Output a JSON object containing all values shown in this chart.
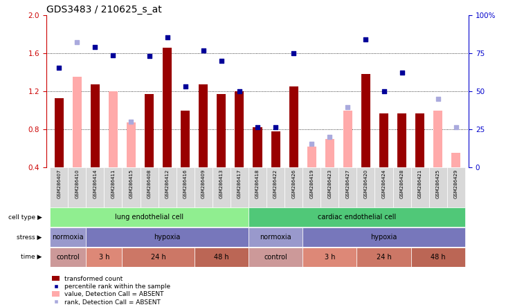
{
  "title": "GDS3483 / 210625_s_at",
  "samples": [
    "GSM286407",
    "GSM286410",
    "GSM286414",
    "GSM286411",
    "GSM286415",
    "GSM286408",
    "GSM286412",
    "GSM286416",
    "GSM286409",
    "GSM286413",
    "GSM286417",
    "GSM286418",
    "GSM286422",
    "GSM286426",
    "GSM286419",
    "GSM286423",
    "GSM286427",
    "GSM286420",
    "GSM286424",
    "GSM286428",
    "GSM286421",
    "GSM286425",
    "GSM286429"
  ],
  "red_bars": [
    1.13,
    null,
    1.27,
    null,
    null,
    1.17,
    1.66,
    1.0,
    1.27,
    1.17,
    1.2,
    0.82,
    0.78,
    1.25,
    null,
    null,
    null,
    1.38,
    0.97,
    0.97,
    0.97,
    null,
    null
  ],
  "pink_bars": [
    null,
    1.35,
    null,
    1.2,
    0.87,
    null,
    null,
    null,
    null,
    null,
    null,
    null,
    null,
    null,
    0.62,
    0.7,
    1.0,
    null,
    null,
    null,
    null,
    1.0,
    0.55
  ],
  "blue_squares": [
    1.45,
    null,
    1.67,
    1.58,
    null,
    1.57,
    1.77,
    1.25,
    1.63,
    1.52,
    1.2,
    0.82,
    0.82,
    1.6,
    null,
    null,
    null,
    1.75,
    1.2,
    1.4,
    null,
    null,
    null
  ],
  "light_blue_squares": [
    null,
    1.72,
    null,
    null,
    0.88,
    null,
    null,
    null,
    null,
    null,
    null,
    null,
    null,
    null,
    0.65,
    0.72,
    1.03,
    null,
    null,
    null,
    null,
    1.12,
    0.82
  ],
  "ylim": [
    0.4,
    2.0
  ],
  "yticks_left": [
    0.4,
    0.8,
    1.2,
    1.6,
    2.0
  ],
  "yticks_right": [
    0,
    25,
    50,
    75,
    100
  ],
  "ytick_labels_right": [
    "0",
    "25",
    "50",
    "75",
    "100%"
  ],
  "cell_type_groups": [
    {
      "label": "lung endothelial cell",
      "start": 0,
      "end": 10,
      "color": "#90ee90"
    },
    {
      "label": "cardiac endothelial cell",
      "start": 11,
      "end": 22,
      "color": "#50c878"
    }
  ],
  "stress_groups": [
    {
      "label": "normoxia",
      "start": 0,
      "end": 1,
      "color": "#9999cc"
    },
    {
      "label": "hypoxia",
      "start": 2,
      "end": 10,
      "color": "#7777bb"
    },
    {
      "label": "normoxia",
      "start": 11,
      "end": 13,
      "color": "#9999cc"
    },
    {
      "label": "hypoxia",
      "start": 14,
      "end": 22,
      "color": "#7777bb"
    }
  ],
  "time_groups": [
    {
      "label": "control",
      "start": 0,
      "end": 1,
      "color": "#cc9999"
    },
    {
      "label": "3 h",
      "start": 2,
      "end": 3,
      "color": "#dd8877"
    },
    {
      "label": "24 h",
      "start": 4,
      "end": 7,
      "color": "#cc7766"
    },
    {
      "label": "48 h",
      "start": 8,
      "end": 10,
      "color": "#bb6655"
    },
    {
      "label": "control",
      "start": 11,
      "end": 13,
      "color": "#cc9999"
    },
    {
      "label": "3 h",
      "start": 14,
      "end": 16,
      "color": "#dd8877"
    },
    {
      "label": "24 h",
      "start": 17,
      "end": 19,
      "color": "#cc7766"
    },
    {
      "label": "48 h",
      "start": 20,
      "end": 22,
      "color": "#bb6655"
    }
  ],
  "bar_color_red": "#990000",
  "bar_color_pink": "#ffaaaa",
  "square_color_blue": "#000099",
  "square_color_light_blue": "#aaaadd",
  "axis_color_left": "#cc0000",
  "axis_color_right": "#0000cc",
  "row_label_names": [
    "cell type",
    "stress",
    "time"
  ]
}
